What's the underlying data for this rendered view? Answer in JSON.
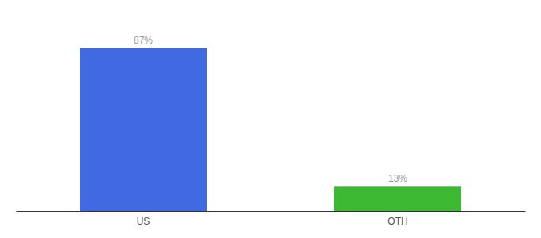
{
  "chart_data": {
    "type": "bar",
    "categories": [
      "US",
      "OTH"
    ],
    "values": [
      87,
      13
    ],
    "value_labels": [
      "87%",
      "13%"
    ],
    "colors": [
      "#4169e1",
      "#3cb832"
    ],
    "ylim": [
      0,
      100
    ],
    "data_labels": true,
    "tick_labels": "x",
    "grid": false
  }
}
